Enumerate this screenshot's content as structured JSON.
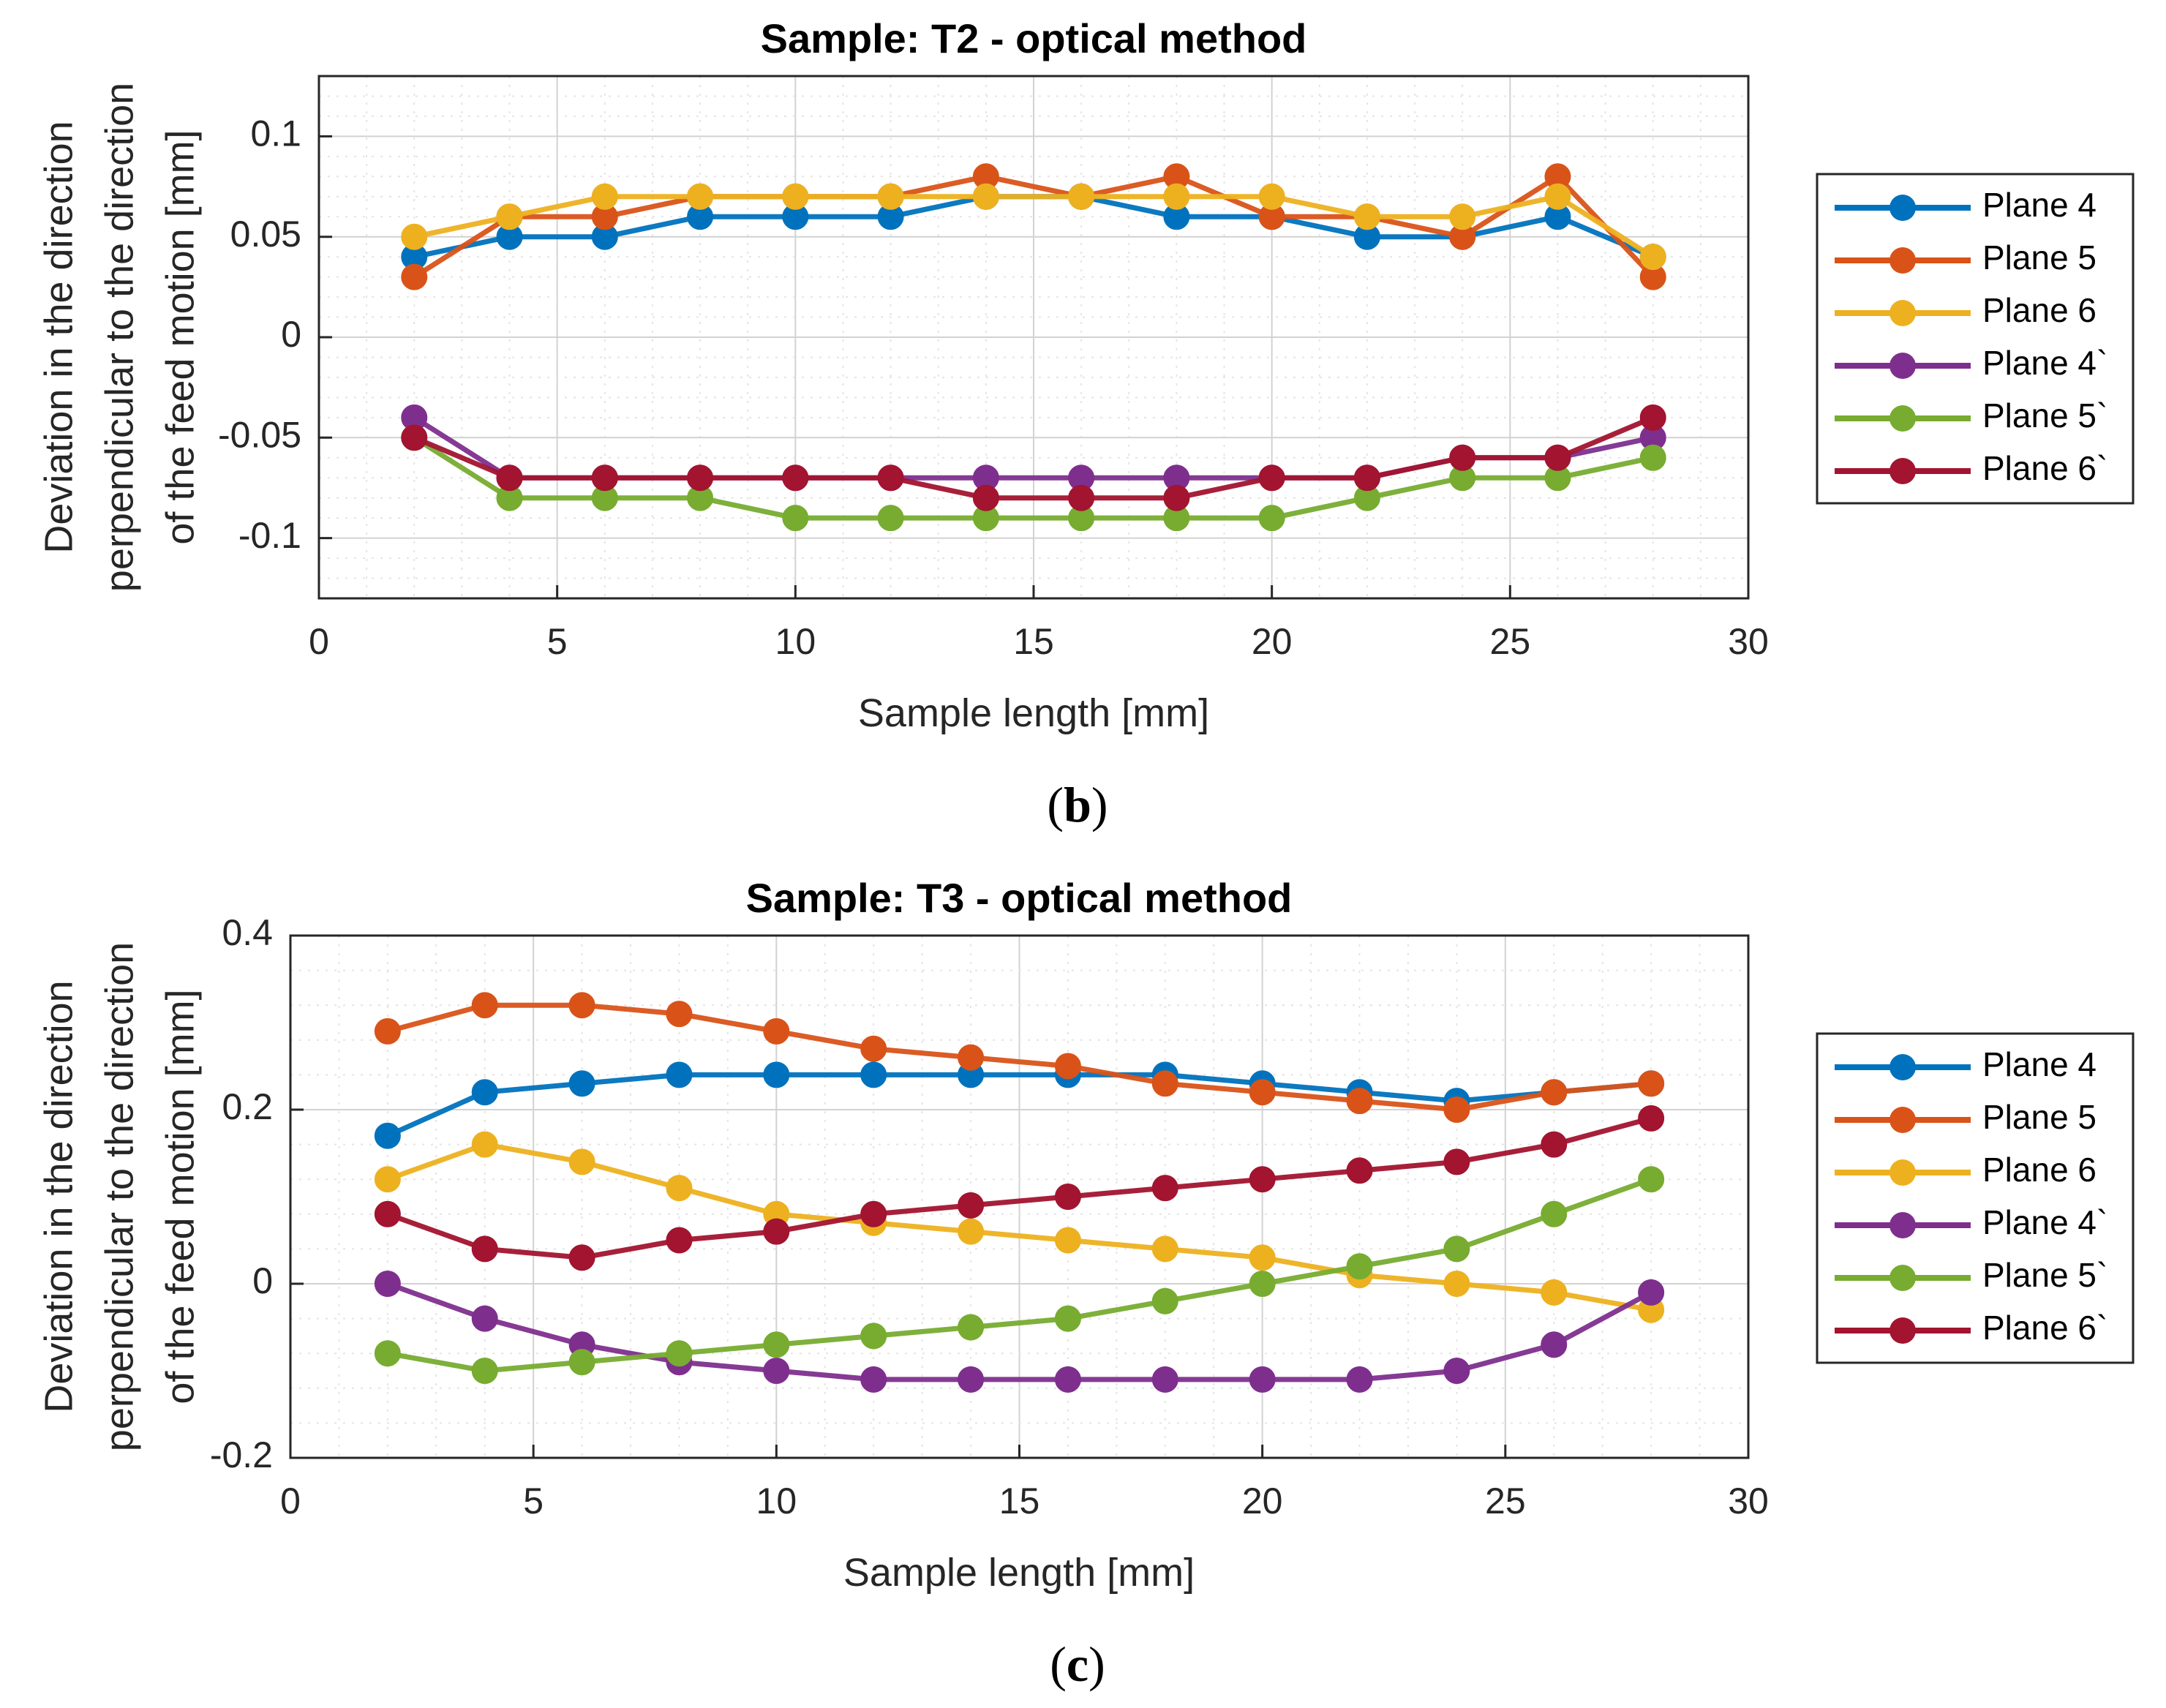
{
  "chart_data": [
    {
      "type": "line",
      "title": "Sample: T2 - optical method",
      "xlabel": "Sample length [mm]",
      "ylabel": [
        "Deviation in the direction",
        "perpendicular to the direction",
        "of the feed motion [mm]"
      ],
      "xlim": [
        0,
        30
      ],
      "ylim": [
        -0.13,
        0.13
      ],
      "xticks": [
        0,
        5,
        10,
        15,
        20,
        25,
        30
      ],
      "yticks": [
        0.1,
        0.05,
        0,
        -0.05,
        -0.1
      ],
      "ytick_labels": [
        "0.1",
        "0.05",
        "0",
        "-0.05",
        "-0.1"
      ],
      "xtick_labels": [
        "0",
        "5",
        "10",
        "15",
        "20",
        "25",
        "30"
      ],
      "grid": true,
      "minor_grid": true,
      "legend_position": "right",
      "caption": {
        "open": "(",
        "letter": "b",
        "close": ")"
      },
      "x": [
        2,
        4,
        6,
        8,
        10,
        12,
        14,
        16,
        18,
        20,
        22,
        24,
        26,
        28
      ],
      "series": [
        {
          "name": "Plane 4",
          "color": "#0072BD",
          "values": [
            0.04,
            0.05,
            0.05,
            0.06,
            0.06,
            0.06,
            0.07,
            0.07,
            0.06,
            0.06,
            0.05,
            0.05,
            0.06,
            0.04
          ]
        },
        {
          "name": "Plane 5",
          "color": "#D95319",
          "values": [
            0.03,
            0.06,
            0.06,
            0.07,
            0.07,
            0.07,
            0.08,
            0.07,
            0.08,
            0.06,
            0.06,
            0.05,
            0.08,
            0.03
          ]
        },
        {
          "name": "Plane 6",
          "color": "#EDB120",
          "values": [
            0.05,
            0.06,
            0.07,
            0.07,
            0.07,
            0.07,
            0.07,
            0.07,
            0.07,
            0.07,
            0.06,
            0.06,
            0.07,
            0.04
          ]
        },
        {
          "name": "Plane 4`",
          "color": "#7E2F8E",
          "values": [
            -0.04,
            -0.07,
            -0.07,
            -0.07,
            -0.07,
            -0.07,
            -0.07,
            -0.07,
            -0.07,
            -0.07,
            -0.07,
            -0.06,
            -0.06,
            -0.05
          ]
        },
        {
          "name": "Plane 5`",
          "color": "#77AC30",
          "values": [
            -0.05,
            -0.08,
            -0.08,
            -0.08,
            -0.09,
            -0.09,
            -0.09,
            -0.09,
            -0.09,
            -0.09,
            -0.08,
            -0.07,
            -0.07,
            -0.06
          ]
        },
        {
          "name": "Plane 6`",
          "color": "#A2142F",
          "values": [
            -0.05,
            -0.07,
            -0.07,
            -0.07,
            -0.07,
            -0.07,
            -0.08,
            -0.08,
            -0.08,
            -0.07,
            -0.07,
            -0.06,
            -0.06,
            -0.04
          ]
        }
      ]
    },
    {
      "type": "line",
      "title": "Sample: T3 - optical method",
      "xlabel": "Sample length [mm]",
      "ylabel": [
        "Deviation in the direction",
        "perpendicular to the direction",
        "of the feed motion [mm]"
      ],
      "xlim": [
        0,
        30
      ],
      "ylim": [
        -0.2,
        0.4
      ],
      "xticks": [
        0,
        5,
        10,
        15,
        20,
        25,
        30
      ],
      "yticks": [
        0.4,
        0.2,
        0,
        -0.2
      ],
      "ytick_labels": [
        "0.4",
        "0.2",
        "0",
        "-0.2"
      ],
      "xtick_labels": [
        "0",
        "5",
        "10",
        "15",
        "20",
        "25",
        "30"
      ],
      "grid": true,
      "minor_grid": true,
      "legend_position": "right",
      "caption": {
        "open": "(",
        "letter": "c",
        "close": ")"
      },
      "x": [
        2,
        4,
        6,
        8,
        10,
        12,
        14,
        16,
        18,
        20,
        22,
        24,
        26,
        28
      ],
      "series": [
        {
          "name": "Plane 4",
          "color": "#0072BD",
          "values": [
            0.17,
            0.22,
            0.23,
            0.24,
            0.24,
            0.24,
            0.24,
            0.24,
            0.24,
            0.23,
            0.22,
            0.21,
            0.22,
            0.23
          ]
        },
        {
          "name": "Plane 5",
          "color": "#D95319",
          "values": [
            0.29,
            0.32,
            0.32,
            0.31,
            0.29,
            0.27,
            0.26,
            0.25,
            0.23,
            0.22,
            0.21,
            0.2,
            0.22,
            0.23
          ]
        },
        {
          "name": "Plane 6",
          "color": "#EDB120",
          "values": [
            0.12,
            0.16,
            0.14,
            0.11,
            0.08,
            0.07,
            0.06,
            0.05,
            0.04,
            0.03,
            0.01,
            0.0,
            -0.01,
            -0.03
          ]
        },
        {
          "name": "Plane 4`",
          "color": "#7E2F8E",
          "values": [
            0.0,
            -0.04,
            -0.07,
            -0.09,
            -0.1,
            -0.11,
            -0.11,
            -0.11,
            -0.11,
            -0.11,
            -0.11,
            -0.1,
            -0.07,
            -0.01
          ]
        },
        {
          "name": "Plane 5`",
          "color": "#77AC30",
          "values": [
            -0.08,
            -0.1,
            -0.09,
            -0.08,
            -0.07,
            -0.06,
            -0.05,
            -0.04,
            -0.02,
            0.0,
            0.02,
            0.04,
            0.08,
            0.12
          ]
        },
        {
          "name": "Plane 6`",
          "color": "#A2142F",
          "values": [
            0.08,
            0.04,
            0.03,
            0.05,
            0.06,
            0.08,
            0.09,
            0.1,
            0.11,
            0.12,
            0.13,
            0.14,
            0.16,
            0.19
          ]
        }
      ]
    }
  ]
}
